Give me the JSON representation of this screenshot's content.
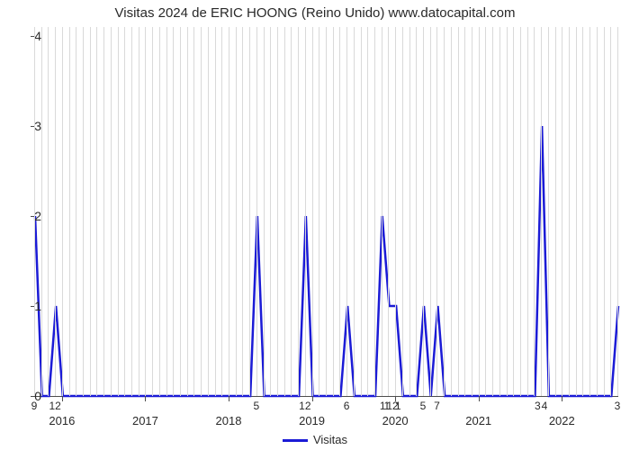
{
  "title": "Visitas 2024 de ERIC HOONG (Reino Unido) www.datocapital.com",
  "legend": {
    "label": "Visitas",
    "color": "#1b1bd6"
  },
  "chart": {
    "type": "line",
    "background_color": "#ffffff",
    "grid_color": "#d9d9d9",
    "axis_color": "#4d4d4d",
    "text_color": "#292929",
    "title_fontsize": 15,
    "label_fontsize": 14,
    "y": {
      "min": 0,
      "max": 4.1,
      "ticks": [
        0,
        1,
        2,
        3,
        4
      ]
    },
    "x": {
      "min": 0,
      "max": 84,
      "years": [
        {
          "label": "2016",
          "t": 4
        },
        {
          "label": "2017",
          "t": 16
        },
        {
          "label": "2018",
          "t": 28
        },
        {
          "label": "2019",
          "t": 40
        },
        {
          "label": "2020",
          "t": 52
        },
        {
          "label": "2021",
          "t": 64
        },
        {
          "label": "2022",
          "t": 76
        }
      ],
      "minor_every": 1,
      "minor_labels": [
        {
          "label": "9",
          "t": 0
        },
        {
          "label": "12",
          "t": 3
        },
        {
          "label": "5",
          "t": 32
        },
        {
          "label": "12",
          "t": 39
        },
        {
          "label": "6",
          "t": 45
        },
        {
          "label": "1",
          "t": 50.2
        },
        {
          "label": "1",
          "t": 50.8
        },
        {
          "label": "12",
          "t": 51.6
        },
        {
          "label": "1",
          "t": 52.4
        },
        {
          "label": "5",
          "t": 56
        },
        {
          "label": "7",
          "t": 58
        },
        {
          "label": "3",
          "t": 72.5
        },
        {
          "label": "4",
          "t": 73.5
        },
        {
          "label": "3",
          "t": 84
        }
      ]
    },
    "series": {
      "color": "#1b1bd6",
      "width": 2.5,
      "points": [
        [
          0,
          2
        ],
        [
          1,
          0
        ],
        [
          2,
          0
        ],
        [
          3,
          1
        ],
        [
          4,
          0
        ],
        [
          5,
          0
        ],
        [
          6,
          0
        ],
        [
          7,
          0
        ],
        [
          8,
          0
        ],
        [
          9,
          0
        ],
        [
          10,
          0
        ],
        [
          11,
          0
        ],
        [
          12,
          0
        ],
        [
          13,
          0
        ],
        [
          14,
          0
        ],
        [
          15,
          0
        ],
        [
          16,
          0
        ],
        [
          17,
          0
        ],
        [
          18,
          0
        ],
        [
          19,
          0
        ],
        [
          20,
          0
        ],
        [
          21,
          0
        ],
        [
          22,
          0
        ],
        [
          23,
          0
        ],
        [
          24,
          0
        ],
        [
          25,
          0
        ],
        [
          26,
          0
        ],
        [
          27,
          0
        ],
        [
          28,
          0
        ],
        [
          29,
          0
        ],
        [
          30,
          0
        ],
        [
          31,
          0
        ],
        [
          32,
          2
        ],
        [
          33,
          0
        ],
        [
          34,
          0
        ],
        [
          35,
          0
        ],
        [
          36,
          0
        ],
        [
          37,
          0
        ],
        [
          38,
          0
        ],
        [
          39,
          2
        ],
        [
          40,
          0
        ],
        [
          41,
          0
        ],
        [
          42,
          0
        ],
        [
          43,
          0
        ],
        [
          44,
          0
        ],
        [
          45,
          1
        ],
        [
          46,
          0
        ],
        [
          47,
          0
        ],
        [
          48,
          0
        ],
        [
          49,
          0
        ],
        [
          50,
          2
        ],
        [
          51,
          1
        ],
        [
          52,
          1
        ],
        [
          53,
          0
        ],
        [
          54,
          0
        ],
        [
          55,
          0
        ],
        [
          56,
          1
        ],
        [
          57,
          0
        ],
        [
          58,
          1
        ],
        [
          59,
          0
        ],
        [
          60,
          0
        ],
        [
          61,
          0
        ],
        [
          62,
          0
        ],
        [
          63,
          0
        ],
        [
          64,
          0
        ],
        [
          65,
          0
        ],
        [
          66,
          0
        ],
        [
          67,
          0
        ],
        [
          68,
          0
        ],
        [
          69,
          0
        ],
        [
          70,
          0
        ],
        [
          71,
          0
        ],
        [
          72,
          0
        ],
        [
          73,
          3
        ],
        [
          74,
          0
        ],
        [
          75,
          0
        ],
        [
          76,
          0
        ],
        [
          77,
          0
        ],
        [
          78,
          0
        ],
        [
          79,
          0
        ],
        [
          80,
          0
        ],
        [
          81,
          0
        ],
        [
          82,
          0
        ],
        [
          83,
          0
        ],
        [
          84,
          1
        ]
      ]
    }
  }
}
